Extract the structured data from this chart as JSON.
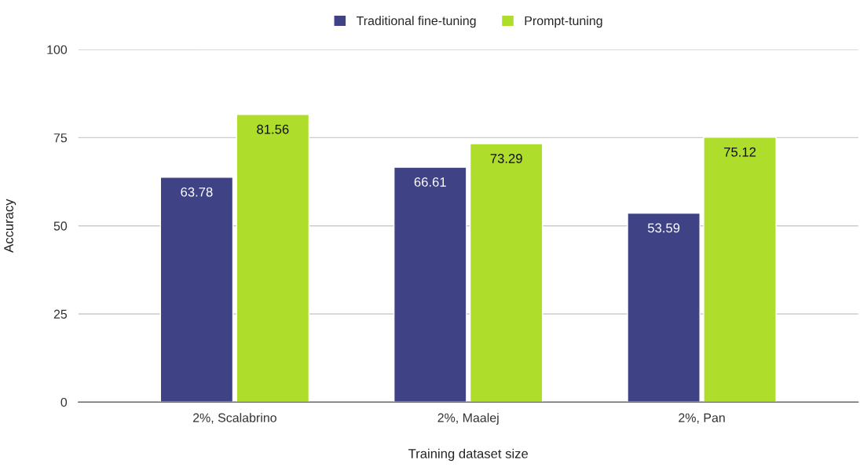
{
  "chart_data": {
    "type": "bar",
    "xlabel": "Training dataset size",
    "ylabel": "Accuracy",
    "categories": [
      "2%, Scalabrino",
      "2%, Maalej",
      "2%, Pan"
    ],
    "series": [
      {
        "name": "Traditional fine-tuning",
        "color": "#3f4385",
        "values": [
          63.78,
          66.61,
          53.59
        ]
      },
      {
        "name": "Prompt-tuning",
        "color": "#aedd2c",
        "values": [
          81.56,
          73.29,
          75.12
        ]
      }
    ],
    "ylim": [
      0,
      100
    ],
    "yticks": [
      0,
      25,
      50,
      75,
      100
    ],
    "grid": "y",
    "legend": "top",
    "data_labels": true
  }
}
